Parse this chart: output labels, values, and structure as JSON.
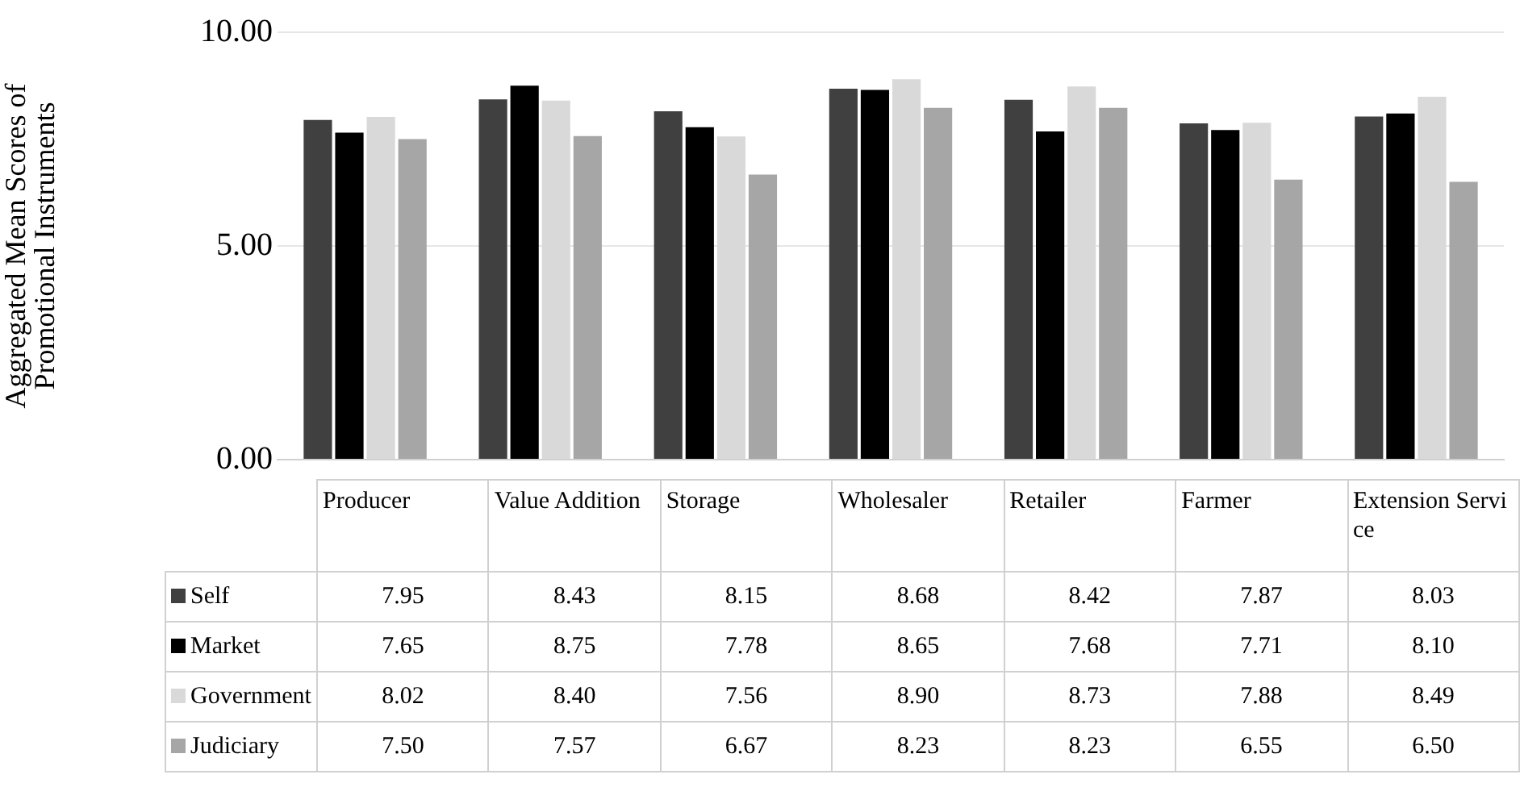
{
  "chart_data": {
    "type": "bar",
    "ylabel": "Aggregated Mean Scores of Promotional Instruments",
    "categories": [
      "Producer",
      "Value Addition",
      "Storage",
      "Wholesaler",
      "Retailer",
      "Farmer",
      "Extension Service"
    ],
    "series": [
      {
        "name": "Self",
        "color": "#404040",
        "values": [
          7.95,
          8.43,
          8.15,
          8.68,
          8.42,
          7.87,
          8.03
        ],
        "value_labels": [
          "7.95",
          "8.43",
          "8.15",
          "8.68",
          "8.42",
          "7.87",
          "8.03"
        ]
      },
      {
        "name": "Market",
        "color": "#000000",
        "values": [
          7.65,
          8.75,
          7.78,
          8.65,
          7.68,
          7.71,
          8.1
        ],
        "value_labels": [
          "7.65",
          "8.75",
          "7.78",
          "8.65",
          "7.68",
          "7.71",
          "8.10"
        ]
      },
      {
        "name": "Government",
        "color": "#d9d9d9",
        "values": [
          8.02,
          8.4,
          7.56,
          8.9,
          8.73,
          7.88,
          8.49
        ],
        "value_labels": [
          "8.02",
          "8.40",
          "7.56",
          "8.90",
          "8.73",
          "7.88",
          "8.49"
        ]
      },
      {
        "name": "Judiciary",
        "color": "#a6a6a6",
        "values": [
          7.5,
          7.57,
          6.67,
          8.23,
          8.23,
          6.55,
          6.5
        ],
        "value_labels": [
          "7.50",
          "7.57",
          "6.67",
          "8.23",
          "8.23",
          "6.55",
          "6.50"
        ]
      }
    ],
    "ylim": [
      0,
      10
    ],
    "yticks": [
      {
        "value": 0,
        "label": "0.00"
      },
      {
        "value": 5,
        "label": "5.00"
      },
      {
        "value": 10,
        "label": "10.00"
      }
    ],
    "grid": "y",
    "legend": "bottom left"
  }
}
